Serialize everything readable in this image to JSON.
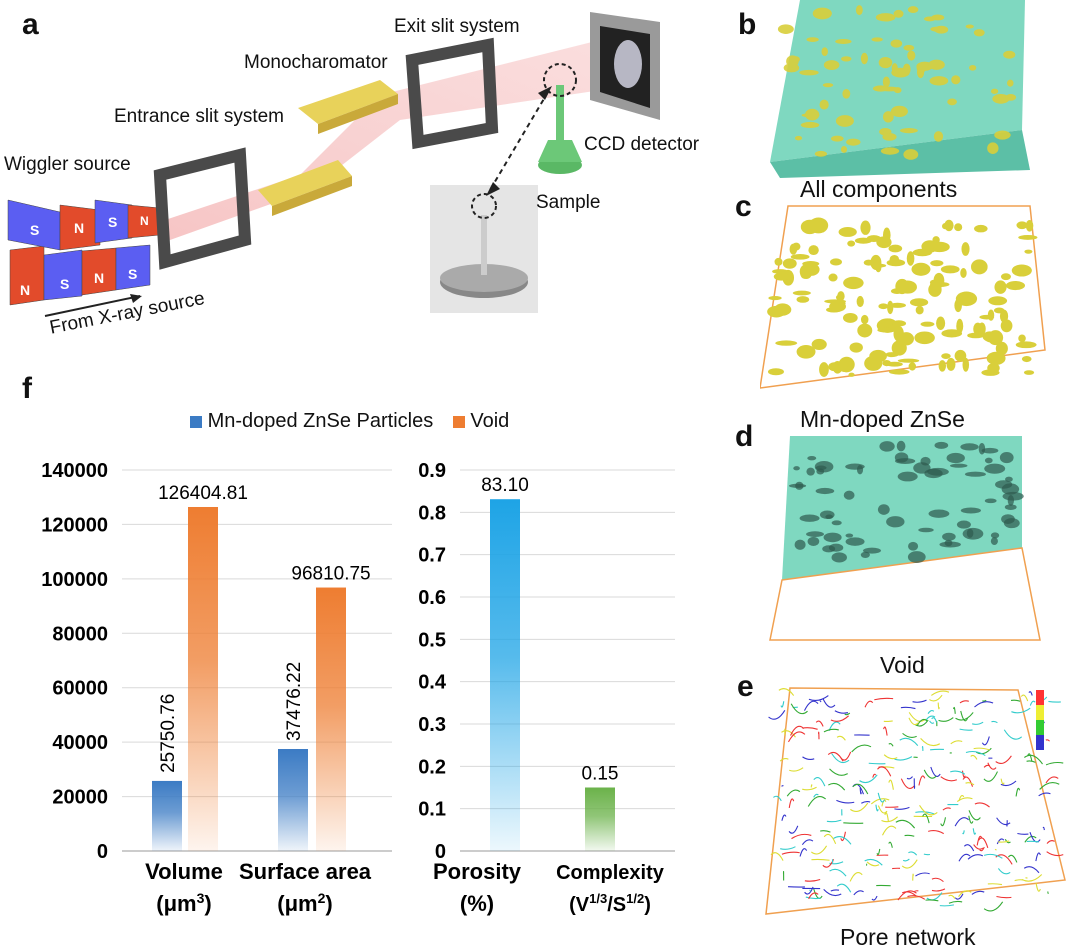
{
  "panels": {
    "a": "a",
    "b": "b",
    "c": "c",
    "d": "d",
    "e": "e",
    "f": "f"
  },
  "setup": {
    "exit_slit": "Exit slit system",
    "monochromator": "Monocharomator",
    "entrance_slit": "Entrance slit system",
    "wiggler": "Wiggler source",
    "ccd": "CCD detector",
    "sample": "Sample",
    "from_xray": "From X-ray source",
    "magnets_top": [
      "S",
      "N",
      "S",
      "N"
    ],
    "magnets_bottom": [
      "N",
      "S",
      "N",
      "S"
    ]
  },
  "captions": {
    "b": "All components",
    "c": "Mn-doped ZnSe",
    "d": "Void",
    "e": "Pore network"
  },
  "colors": {
    "cyan_render": "#7fd8c0",
    "yellow_render": "#d9cf3a",
    "box_edge": "#f0a050",
    "blue_bar": "#3b7bc4",
    "orange_bar": "#ee7d31",
    "porosity_bar": "#1ea4e6",
    "complexity_bar": "#6bb24a"
  },
  "chart_data": [
    {
      "type": "bar",
      "legend": [
        "Mn-doped ZnSe Particles",
        "Void"
      ],
      "legend_position": "top",
      "categories": [
        {
          "line1": "Volume",
          "unit_prefix": "(μm",
          "unit_sup": "3",
          "unit_suffix": ")"
        },
        {
          "line1": "Surface area",
          "unit_prefix": "(μm",
          "unit_sup": "2",
          "unit_suffix": ")"
        }
      ],
      "series": [
        {
          "name": "Mn-doped ZnSe Particles",
          "values": [
            25750.76,
            37476.22
          ],
          "labels": [
            "25750.76",
            "37476.22"
          ]
        },
        {
          "name": "Void",
          "values": [
            126404.81,
            96810.75
          ],
          "labels": [
            "126404.81",
            "96810.75"
          ]
        }
      ],
      "ylim": [
        0,
        140000
      ],
      "yticks": [
        "0",
        "20000",
        "40000",
        "60000",
        "80000",
        "100000",
        "120000",
        "140000"
      ],
      "ytick_values": [
        0,
        20000,
        40000,
        60000,
        80000,
        100000,
        120000,
        140000
      ],
      "grid": true
    },
    {
      "type": "bar",
      "categories": [
        {
          "line1": "Porosity",
          "line2": "(%)"
        },
        {
          "line1": "Complexity",
          "line2_parts": [
            "(V",
            "1/3",
            "/S",
            "1/2",
            ")"
          ]
        }
      ],
      "values": [
        0.831,
        0.15
      ],
      "labels": [
        "83.10",
        "0.15"
      ],
      "ylim": [
        0,
        0.9
      ],
      "yticks": [
        "0",
        "0.1",
        "0.2",
        "0.3",
        "0.4",
        "0.5",
        "0.6",
        "0.7",
        "0.8",
        "0.9"
      ],
      "ytick_values": [
        0,
        0.1,
        0.2,
        0.3,
        0.4,
        0.5,
        0.6,
        0.7,
        0.8,
        0.9
      ],
      "grid": true
    }
  ]
}
